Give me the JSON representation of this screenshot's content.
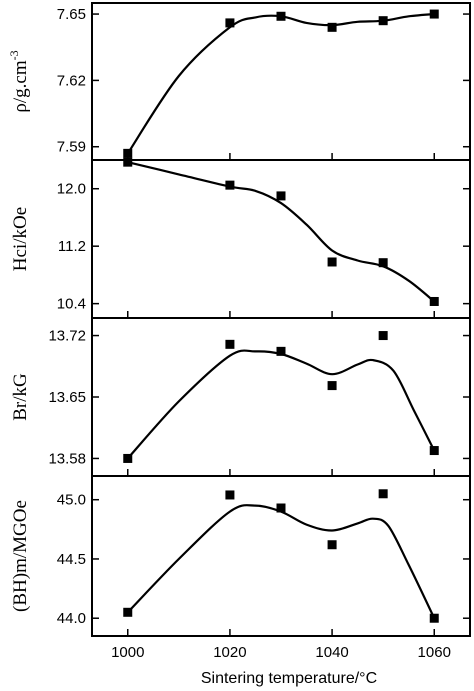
{
  "chart_data": {
    "type": "scatter",
    "xlabel": "Sintering temperature/°C",
    "x_ticks": [
      "1000",
      "1020",
      "1040",
      "1060"
    ],
    "xlim": [
      993,
      1067
    ],
    "panels": [
      {
        "ylabel": "ρ/g.cm",
        "ylabel_sup": "-3",
        "y_ticks": [
          "7.59",
          "7.62",
          "7.65"
        ],
        "ylim": [
          7.584,
          7.655
        ],
        "x": [
          1000,
          1020,
          1030,
          1040,
          1050,
          1060
        ],
        "values": [
          7.587,
          7.646,
          7.649,
          7.644,
          7.647,
          7.65
        ],
        "fit": [
          [
            1000,
            7.587
          ],
          [
            1010,
            7.622
          ],
          [
            1020,
            7.644
          ],
          [
            1025,
            7.6485
          ],
          [
            1030,
            7.649
          ],
          [
            1035,
            7.646
          ],
          [
            1040,
            7.645
          ],
          [
            1045,
            7.6465
          ],
          [
            1050,
            7.647
          ],
          [
            1055,
            7.649
          ],
          [
            1060,
            7.65
          ]
        ]
      },
      {
        "ylabel": "Hci/kOe",
        "ylabel_sup": "",
        "y_ticks": [
          "10.4",
          "11.2",
          "12.0"
        ],
        "ylim": [
          10.2,
          12.4
        ],
        "x": [
          1000,
          1020,
          1030,
          1040,
          1050,
          1060
        ],
        "values": [
          12.37,
          12.05,
          11.9,
          10.98,
          10.97,
          10.43
        ],
        "fit": [
          [
            1000,
            12.37
          ],
          [
            1010,
            12.2
          ],
          [
            1020,
            12.03
          ],
          [
            1025,
            11.97
          ],
          [
            1030,
            11.8
          ],
          [
            1035,
            11.5
          ],
          [
            1040,
            11.14
          ],
          [
            1045,
            11.0
          ],
          [
            1050,
            10.92
          ],
          [
            1055,
            10.72
          ],
          [
            1060,
            10.43
          ]
        ]
      },
      {
        "ylabel": "Br/kG",
        "ylabel_sup": "",
        "y_ticks": [
          "13.58",
          "13.65",
          "13.72"
        ],
        "ylim": [
          13.56,
          13.74
        ],
        "x": [
          1000,
          1020,
          1030,
          1040,
          1050,
          1060
        ],
        "values": [
          13.58,
          13.71,
          13.702,
          13.663,
          13.72,
          13.589
        ],
        "fit": [
          [
            1000,
            13.58
          ],
          [
            1010,
            13.645
          ],
          [
            1020,
            13.697
          ],
          [
            1025,
            13.702
          ],
          [
            1030,
            13.699
          ],
          [
            1035,
            13.688
          ],
          [
            1040,
            13.676
          ],
          [
            1045,
            13.687
          ],
          [
            1048,
            13.692
          ],
          [
            1052,
            13.68
          ],
          [
            1056,
            13.635
          ],
          [
            1060,
            13.589
          ]
        ]
      },
      {
        "ylabel": "(BH)m/MGOe",
        "ylabel_sup": "",
        "y_ticks": [
          "44.0",
          "44.5",
          "45.0"
        ],
        "ylim": [
          43.85,
          45.2
        ],
        "x": [
          1000,
          1020,
          1030,
          1040,
          1050,
          1060
        ],
        "values": [
          44.05,
          45.04,
          44.93,
          44.62,
          45.05,
          44.0
        ],
        "fit": [
          [
            1000,
            44.05
          ],
          [
            1010,
            44.5
          ],
          [
            1020,
            44.9
          ],
          [
            1025,
            44.95
          ],
          [
            1030,
            44.9
          ],
          [
            1035,
            44.79
          ],
          [
            1040,
            44.74
          ],
          [
            1045,
            44.8
          ],
          [
            1048,
            44.84
          ],
          [
            1051,
            44.78
          ],
          [
            1055,
            44.45
          ],
          [
            1060,
            44.0
          ]
        ]
      }
    ]
  }
}
